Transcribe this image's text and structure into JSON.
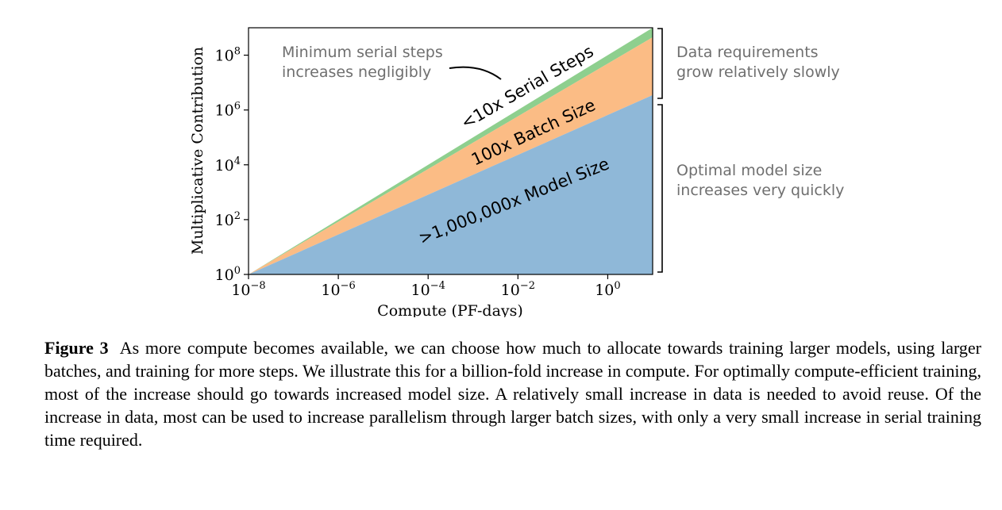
{
  "chart_data": {
    "type": "area",
    "xlabel": "Compute (PF-days)",
    "ylabel": "Multiplicative Contribution",
    "xscale": "log",
    "yscale": "log",
    "xlim": [
      1e-08,
      10
    ],
    "ylim": [
      1,
      1000000000.0
    ],
    "x_ticks": [
      {
        "base": "10",
        "exp": "−8",
        "value": 1e-08
      },
      {
        "base": "10",
        "exp": "−6",
        "value": 1e-06
      },
      {
        "base": "10",
        "exp": "−4",
        "value": 0.0001
      },
      {
        "base": "10",
        "exp": "−2",
        "value": 0.01
      },
      {
        "base": "10",
        "exp": "0",
        "value": 1
      }
    ],
    "y_ticks": [
      {
        "base": "10",
        "exp": "0",
        "value": 1
      },
      {
        "base": "10",
        "exp": "2",
        "value": 100
      },
      {
        "base": "10",
        "exp": "4",
        "value": 10000
      },
      {
        "base": "10",
        "exp": "6",
        "value": 1000000
      },
      {
        "base": "10",
        "exp": "8",
        "value": 100000000
      }
    ],
    "x": [
      1e-08,
      10
    ],
    "series": [
      {
        "name": ">1,000,000x Model Size",
        "color": "#8fb8d8",
        "top": [
          1,
          3500000
        ]
      },
      {
        "name": "100x Batch Size",
        "color": "#fbbc85",
        "top": [
          1,
          450000000
        ]
      },
      {
        "name": "<10x Serial Steps",
        "color": "#8ecf8e",
        "top": [
          1,
          1000000000
        ]
      }
    ],
    "annotations": {
      "serial_note": [
        "Minimum serial steps",
        "increases negligibly"
      ],
      "data_note": [
        "Data requirements",
        "grow relatively slowly"
      ],
      "model_note": [
        "Optimal model size",
        "increases very quickly"
      ]
    },
    "grid": false
  },
  "caption": {
    "label": "Figure 3",
    "text": "As more compute becomes available, we can choose how much to allocate towards training larger models, using larger batches, and training for more steps. We illustrate this for a billion-fold increase in compute. For optimally compute-efficient training, most of the increase should go towards increased model size. A relatively small increase in data is needed to avoid reuse. Of the increase in data, most can be used to increase parallelism through larger batch sizes, with only a very small increase in serial training time required."
  }
}
